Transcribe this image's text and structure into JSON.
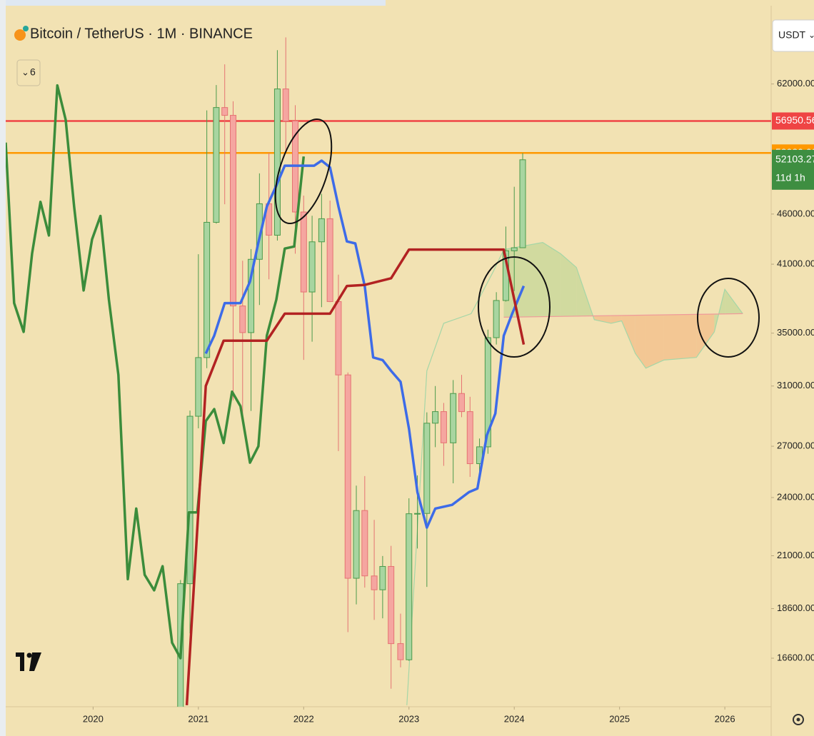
{
  "chart_data": {
    "type": "candlestick",
    "title": "Bitcoin / TetherUS · 1M · BINANCE",
    "indicator_count": 6,
    "currency": "USDT",
    "log_scale": true,
    "grid": false,
    "xlim": [
      2019.17,
      2026.44
    ],
    "xticks": [
      2020,
      2021,
      2022,
      2023,
      2024,
      2025,
      2026
    ],
    "ylim": [
      14850,
      74200
    ],
    "yticks": [
      {
        "value": 62000,
        "label": "62000.00"
      },
      {
        "value": 46000,
        "label": "46000.00"
      },
      {
        "value": 41000,
        "label": "41000.00"
      },
      {
        "value": 35000,
        "label": "35000.00"
      },
      {
        "value": 31000,
        "label": "31000.00"
      },
      {
        "value": 27000,
        "label": "27000.00"
      },
      {
        "value": 24000,
        "label": "24000.00"
      },
      {
        "value": 21000,
        "label": "21000.00"
      },
      {
        "value": 18600,
        "label": "18600.00"
      },
      {
        "value": 16600,
        "label": "16600.00"
      }
    ],
    "up_color": "#4c9a4c",
    "up_fill": "#a8d5a0",
    "down_color": "#e57373",
    "down_fill": "#f5a6a0",
    "candles": {
      "x": [
        2020.83,
        2020.92,
        2021.0,
        2021.08,
        2021.17,
        2021.25,
        2021.33,
        2021.42,
        2021.5,
        2021.58,
        2021.67,
        2021.75,
        2021.83,
        2021.92,
        2022.0,
        2022.08,
        2022.17,
        2022.25,
        2022.33,
        2022.42,
        2022.5,
        2022.58,
        2022.67,
        2022.75,
        2022.83,
        2022.92,
        2023.0,
        2023.08,
        2023.17,
        2023.25,
        2023.33,
        2023.42,
        2023.5,
        2023.58,
        2023.67,
        2023.75,
        2023.83,
        2023.92,
        2024.0,
        2024.08
      ],
      "open": [
        13791,
        19695,
        28923,
        33092,
        45134,
        58739,
        57697,
        37253,
        35045,
        41461,
        47101,
        43820,
        61300,
        56950,
        46216,
        38466,
        43160,
        45510,
        37630,
        31801,
        19942,
        23296,
        20048,
        19422,
        20490,
        17165,
        16541,
        23125,
        23141,
        28466,
        29233,
        27211,
        30472,
        29232,
        25940,
        26963,
        34639,
        37723,
        42283,
        42580
      ],
      "high": [
        19863,
        29300,
        41950,
        58352,
        61844,
        64854,
        59592,
        41330,
        42448,
        50500,
        52920,
        67000,
        69000,
        59053,
        47990,
        45821,
        48189,
        47444,
        40023,
        31982,
        24668,
        25211,
        22799,
        20988,
        21480,
        18387,
        23960,
        25250,
        29184,
        31000,
        29820,
        31431,
        31804,
        30244,
        27483,
        35280,
        38450,
        44700,
        48969,
        52900
      ],
      "low": [
        13621,
        17572,
        28130,
        32296,
        45000,
        47044,
        30000,
        28805,
        29278,
        37332,
        39600,
        43283,
        53256,
        42000,
        32917,
        34322,
        37155,
        37578,
        26700,
        17622,
        18781,
        19520,
        18125,
        18190,
        15476,
        16256,
        16499,
        21351,
        19549,
        26942,
        25811,
        24800,
        28861,
        25166,
        24901,
        26538,
        34097,
        37629,
        38555,
        42546
      ],
      "close": [
        19695,
        28923,
        33092,
        45135,
        58740,
        57694,
        37253,
        35045,
        41461,
        47100,
        43824,
        61300,
        56950,
        46216,
        38466,
        43160,
        45510,
        37630,
        31801,
        19942,
        23293,
        20050,
        19422,
        20490,
        17164,
        16542,
        23125,
        23141,
        28465,
        29233,
        27211,
        30472,
        29232,
        25940,
        26963,
        34639,
        37723,
        42283,
        42580,
        52103.27
      ]
    },
    "countdown": "11d 1h",
    "series": [
      {
        "color": "#3b8c3b",
        "x": [
          2019.17,
          2019.25,
          2019.34,
          2019.42,
          2019.5,
          2019.58,
          2019.66,
          2019.74,
          2019.82,
          2019.91,
          2019.99,
          2020.07,
          2020.15,
          2020.24,
          2020.33,
          2020.41,
          2020.49,
          2020.58,
          2020.66,
          2020.75,
          2020.83,
          2020.91,
          2020.99,
          2021.07,
          2021.15,
          2021.24,
          2021.32,
          2021.4,
          2021.49,
          2021.57,
          2021.65,
          2021.74,
          2021.82,
          2021.91,
          2022.0
        ],
        "values": [
          54200,
          37500,
          35100,
          42000,
          47300,
          43800,
          61800,
          57100,
          46800,
          38600,
          43400,
          45800,
          37800,
          31800,
          19900,
          23400,
          20100,
          19400,
          20500,
          17200,
          16600,
          23200,
          23200,
          28600,
          29400,
          27200,
          30600,
          29600,
          26000,
          27000,
          34800,
          37800,
          42500,
          42700,
          52500
        ]
      },
      {
        "color": "#3d6be8",
        "x": [
          2021.07,
          2021.15,
          2021.25,
          2021.4,
          2021.49,
          2021.57,
          2021.65,
          2021.74,
          2021.82,
          2022.1,
          2022.17,
          2022.25,
          2022.33,
          2022.41,
          2022.49,
          2022.58,
          2022.66,
          2022.75,
          2022.83,
          2022.92,
          2023.0,
          2023.08,
          2023.17,
          2023.25,
          2023.41,
          2023.57,
          2023.65,
          2023.74,
          2023.82,
          2023.9,
          2023.98,
          2024.09
        ],
        "values": [
          33400,
          34800,
          37500,
          37500,
          39400,
          43100,
          46800,
          49100,
          51400,
          51400,
          52000,
          51200,
          46800,
          43200,
          43000,
          39000,
          33100,
          32900,
          32100,
          31300,
          28100,
          24300,
          22400,
          23400,
          23600,
          24300,
          24500,
          27700,
          29100,
          34800,
          36600,
          39000
        ]
      },
      {
        "color": "#b22222",
        "x": [
          2020.89,
          2021.07,
          2021.24,
          2021.65,
          2021.82,
          2022.25,
          2022.41,
          2022.58,
          2022.83,
          2023.0,
          2023.9,
          2024.09
        ],
        "values": [
          14900,
          31000,
          34400,
          34400,
          36600,
          36600,
          39000,
          39100,
          39700,
          42400,
          42400,
          34100
        ]
      }
    ],
    "cloud": {
      "span_a": {
        "color": "#a5d6a7",
        "x": [
          2022.98,
          2023.17,
          2023.33,
          2023.59,
          2023.8,
          2023.9,
          2024.27,
          2024.44,
          2024.59,
          2024.76,
          2024.92,
          2025.02,
          2025.15,
          2025.25,
          2025.42,
          2025.73,
          2025.9,
          2026.0,
          2026.17
        ],
        "values": [
          14900,
          32100,
          35800,
          36600,
          40300,
          42400,
          43100,
          42000,
          40700,
          36100,
          35800,
          36000,
          33400,
          32300,
          32900,
          33100,
          35100,
          38700,
          36600
        ]
      },
      "span_b": {
        "color": "#ef9a9a",
        "x": [
          2023.9,
          2026.17
        ],
        "values": [
          36300,
          36600
        ]
      },
      "fill_up": "#c8d89a",
      "fill_down": "#f2c08c"
    },
    "price_lines": [
      {
        "value": 56950.56,
        "color": "#ef4444"
      },
      {
        "value": 52920,
        "label": "52920.00",
        "color": "#ff9800"
      }
    ],
    "last_color": "#3e8e41"
  }
}
